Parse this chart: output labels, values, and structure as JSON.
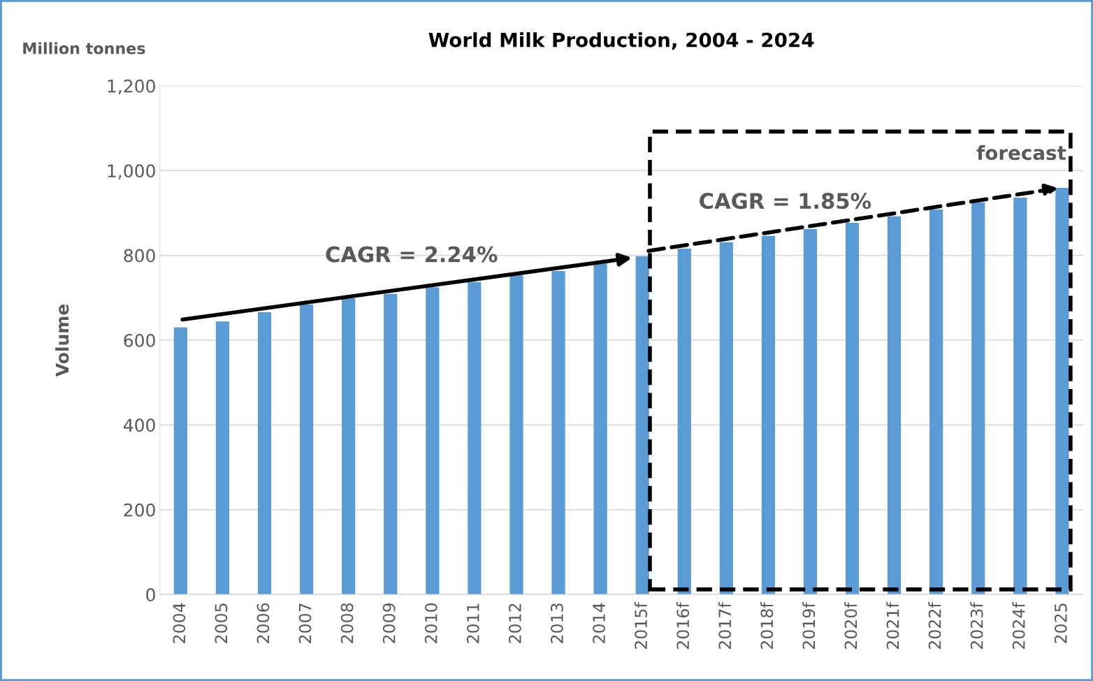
{
  "chart_data": {
    "type": "bar",
    "title": "World Milk Production, 2004 - 2024",
    "ylabel": "Volume",
    "categories": [
      "2004",
      "2005",
      "2006",
      "2007",
      "2008",
      "2009",
      "2010",
      "2011",
      "2012",
      "2013",
      "2014",
      "2015f",
      "2016f",
      "2017f",
      "2018f",
      "2019f",
      "2020f",
      "2021f",
      "2022f",
      "2023f",
      "2024f",
      "2025"
    ],
    "series": [
      {
        "color": "#5b9bd5",
        "values": [
          630,
          644,
          666,
          684,
          699,
          709,
          725,
          737,
          753,
          763,
          785,
          798,
          816,
          831,
          846,
          862,
          877,
          892,
          908,
          925,
          936,
          959
        ]
      }
    ],
    "ylim": [
      0,
      1200
    ],
    "yticks": [
      {
        "value": 0,
        "label": "0"
      },
      {
        "value": 200,
        "label": "200"
      },
      {
        "value": 400,
        "label": "400"
      },
      {
        "value": 600,
        "label": "600"
      },
      {
        "value": 800,
        "label": "800"
      },
      {
        "value": 1000,
        "label": "1,000"
      },
      {
        "value": 1200,
        "label": "1,200"
      }
    ],
    "grid": "y",
    "annotations": [
      "Million tonnes",
      "CAGR = 2.24%",
      "CAGR = 1.85%",
      "forecast"
    ]
  }
}
